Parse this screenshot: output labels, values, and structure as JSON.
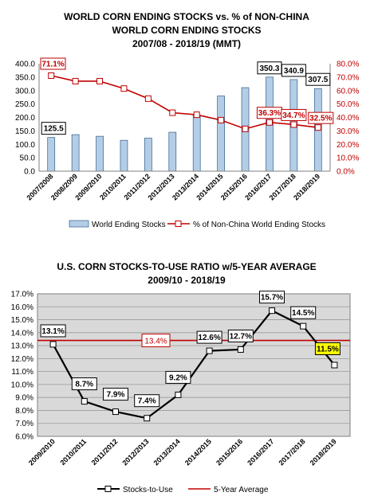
{
  "chart_data": [
    {
      "type": "bar",
      "title": [
        "WORLD CORN ENDING STOCKS vs. % of NON-CHINA",
        "WORLD CORN ENDING STOCKS",
        "2007/08 - 2018/19 (MMT)"
      ],
      "categories": [
        "2007/2008",
        "2008/2009",
        "2009/2010",
        "2010/2011",
        "2011/2012",
        "2012/2013",
        "2013/2014",
        "2014/2015",
        "2015/2016",
        "2016/2017",
        "2017/2018",
        "2018/2019"
      ],
      "series": [
        {
          "name": "World Ending Stocks",
          "type": "bar",
          "axis": "left",
          "color": "#b4cde6",
          "values": [
            125.5,
            136,
            130,
            115,
            123,
            145,
            208,
            280,
            311,
            350.3,
            340.9,
            307.5
          ]
        },
        {
          "name": "% of Non-China World Ending Stocks",
          "type": "line",
          "axis": "right",
          "color": "#c00000",
          "values": [
            71.1,
            67,
            67,
            61.5,
            54,
            43.5,
            42,
            38,
            31.5,
            36.3,
            34.7,
            32.5
          ]
        }
      ],
      "bar_labels": [
        {
          "index": 0,
          "text": "125.5"
        },
        {
          "index": 9,
          "text": "350.3"
        },
        {
          "index": 10,
          "text": "340.9"
        },
        {
          "index": 11,
          "text": "307.5"
        }
      ],
      "line_labels": [
        {
          "index": 0,
          "text": "71.1%"
        },
        {
          "index": 9,
          "text": "36.3%"
        },
        {
          "index": 10,
          "text": "34.7%"
        },
        {
          "index": 11,
          "text": "32.5%"
        }
      ],
      "ylim_left": [
        0,
        400
      ],
      "yticks_left": [
        "0.0",
        "50.0",
        "100.0",
        "150.0",
        "200.0",
        "250.0",
        "300.0",
        "350.0",
        "400.0"
      ],
      "ylim_right": [
        0,
        80
      ],
      "yticks_right": [
        "0.0%",
        "10.0%",
        "20.0%",
        "30.0%",
        "40.0%",
        "50.0%",
        "60.0%",
        "70.0%",
        "80.0%"
      ],
      "grid": false,
      "legend": "bottom"
    },
    {
      "type": "line",
      "title": [
        "U.S. CORN STOCKS-TO-USE RATIO w/5-YEAR AVERAGE",
        "2009/10 - 2018/19"
      ],
      "categories": [
        "2009/2010",
        "2010/2011",
        "2011/2012",
        "2012/2013",
        "2013/2014",
        "2014/2015",
        "2015/2016",
        "2016/2017",
        "2017/2018",
        "2018/2019"
      ],
      "series": [
        {
          "name": "Stocks-to-Use",
          "color": "#000000",
          "values": [
            13.1,
            8.7,
            7.9,
            7.4,
            9.2,
            12.6,
            12.7,
            15.7,
            14.5,
            11.5
          ]
        },
        {
          "name": "5-Year Average",
          "color": "#c00000",
          "values": [
            13.4,
            13.4,
            13.4,
            13.4,
            13.4,
            13.4,
            13.4,
            13.4,
            13.4,
            13.4
          ]
        }
      ],
      "point_labels": [
        "13.1%",
        "8.7%",
        "7.9%",
        "7.4%",
        "9.2%",
        "12.6%",
        "12.7%",
        "15.7%",
        "14.5%",
        "11.5%"
      ],
      "average_label": "13.4%",
      "ylim": [
        6,
        17
      ],
      "yticks": [
        "6.0%",
        "7.0%",
        "8.0%",
        "9.0%",
        "10.0%",
        "11.0%",
        "12.0%",
        "13.0%",
        "14.0%",
        "15.0%",
        "16.0%",
        "17.0%"
      ],
      "grid": true,
      "background": "#d9d9d9",
      "legend": "bottom"
    }
  ]
}
